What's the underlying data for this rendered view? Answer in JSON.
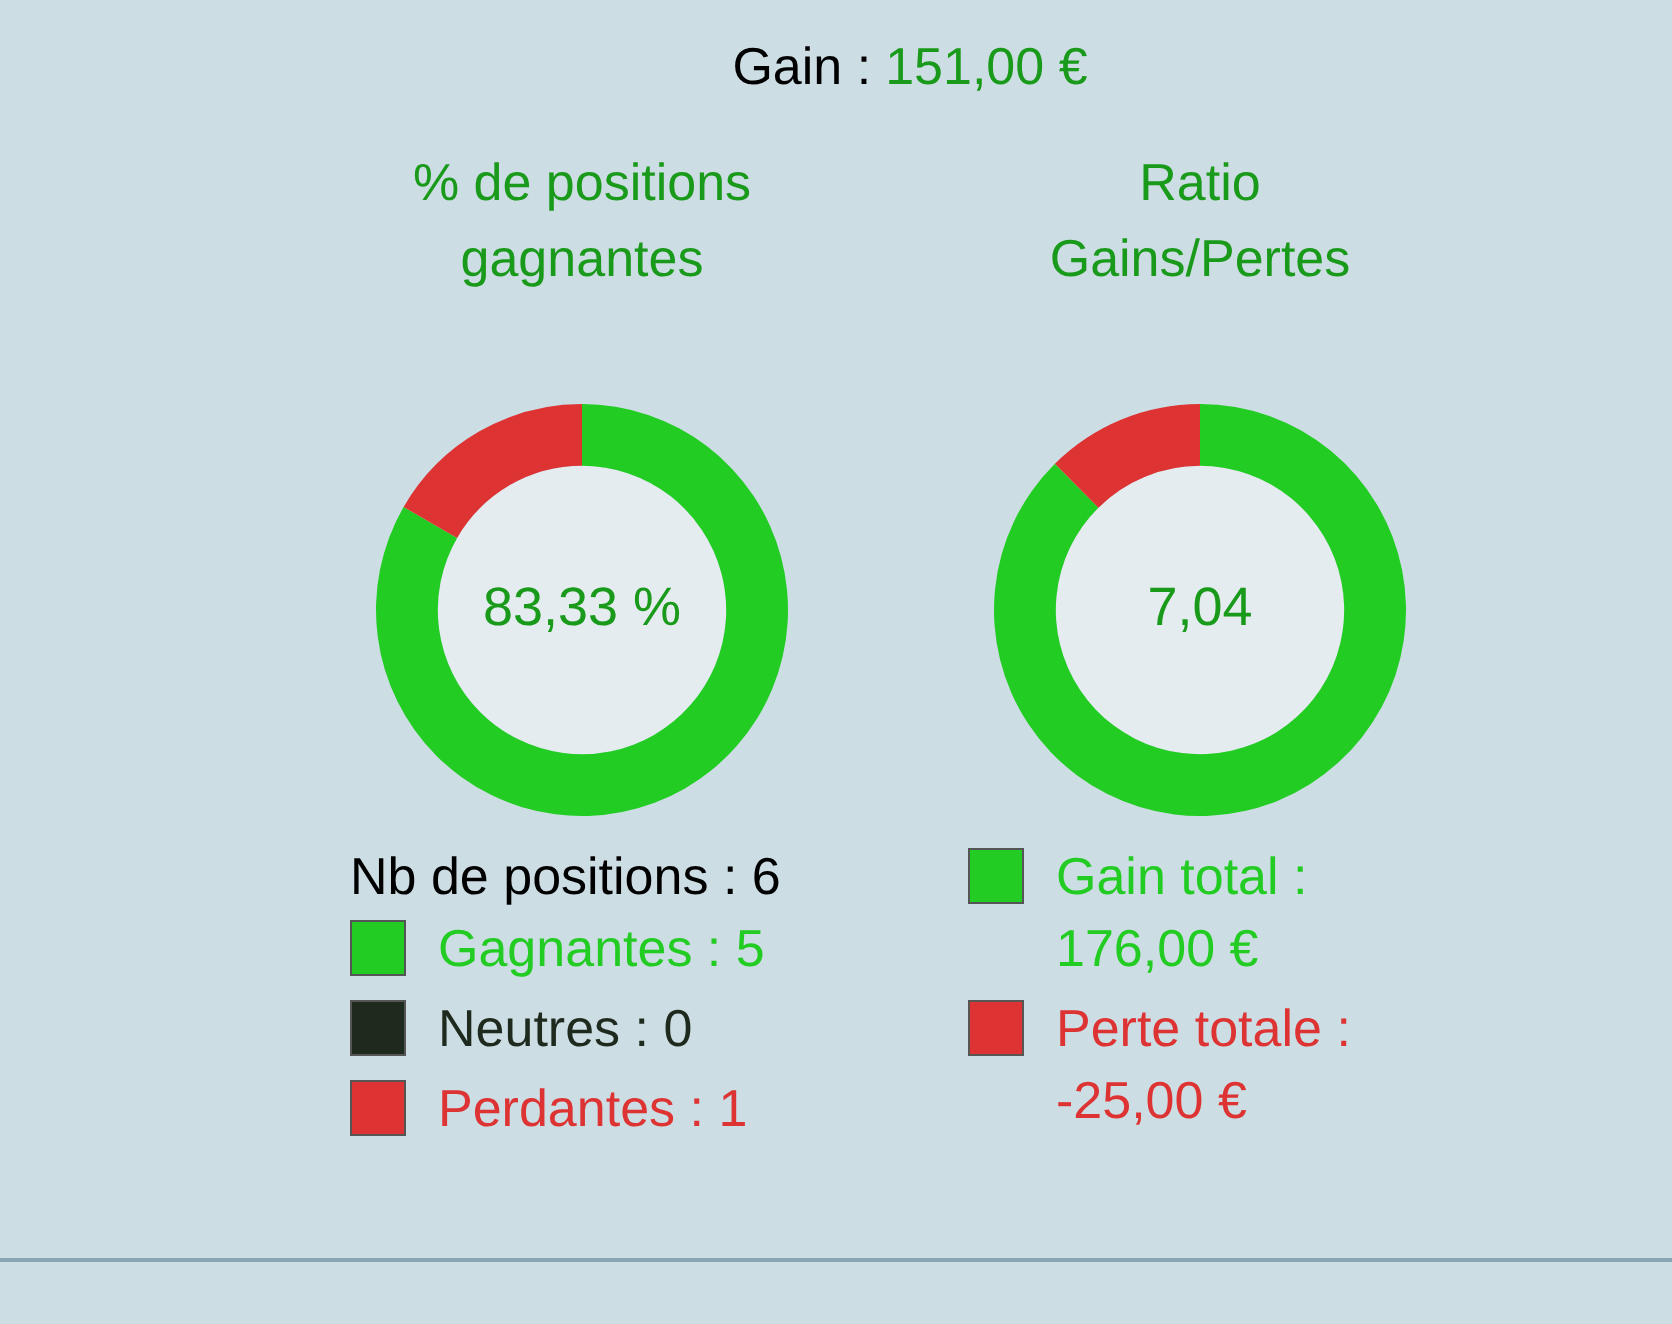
{
  "chart_data": [
    {
      "type": "other",
      "title": "Gain :",
      "subtitle": "151,00 €"
    },
    {
      "type": "donut",
      "title": "% de positions gagnantes",
      "categories": [
        "Gagnantes : 5",
        "Neutres : 0",
        "Perdantes : 1"
      ],
      "values": [
        5,
        0,
        1
      ],
      "colors": [
        "#22cc22",
        "#1e2a1e",
        "#dd3333"
      ],
      "legend_title": "Nb de positions : 6",
      "legend": "bottom",
      "annotations": [
        "83,33 %"
      ]
    },
    {
      "type": "donut",
      "title": "Ratio Gains/Pertes",
      "categories": [
        "Gain total : 176,00 €",
        "Perte totale : -25,00 €"
      ],
      "values": [
        176,
        25
      ],
      "colors": [
        "#22cc22",
        "#dd3333"
      ],
      "legend": "bottom",
      "annotations": [
        "7,04"
      ]
    }
  ]
}
